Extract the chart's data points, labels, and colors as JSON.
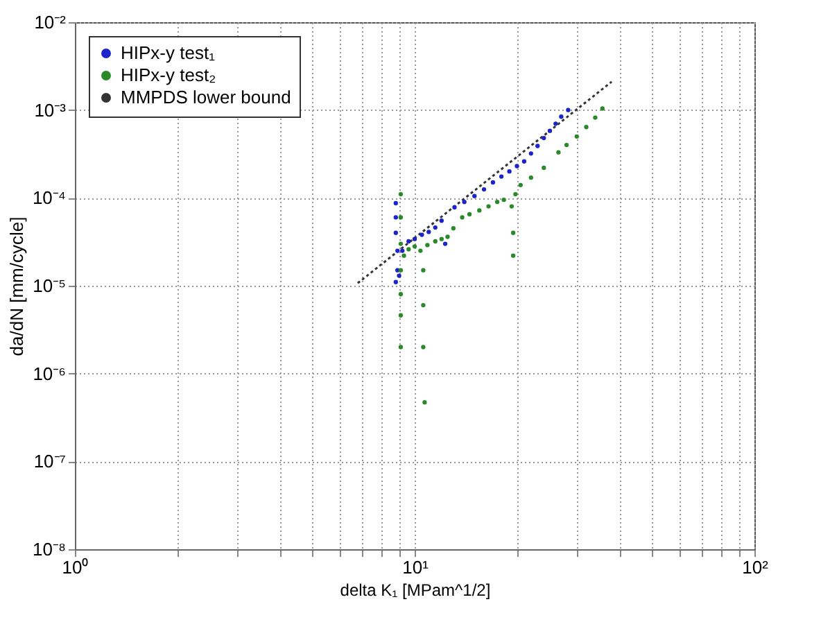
{
  "chart_data": {
    "type": "scatter",
    "xlabel": "delta K₁ [MPam^1/2]",
    "ylabel": "da/dN [mm/cycle]",
    "log": "xy",
    "grid": true,
    "legend": "top left",
    "marker": "circle",
    "xlim": [
      1,
      100
    ],
    "ylim": [
      1e-08,
      0.01
    ],
    "xticks": [
      {
        "value": 1,
        "label": "10⁰"
      },
      {
        "value": 2,
        "label": null
      },
      {
        "value": 3,
        "label": null
      },
      {
        "value": 4,
        "label": null
      },
      {
        "value": 5,
        "label": null
      },
      {
        "value": 6,
        "label": null
      },
      {
        "value": 7,
        "label": null
      },
      {
        "value": 8,
        "label": null
      },
      {
        "value": 9,
        "label": null
      },
      {
        "value": 10,
        "label": "10¹"
      },
      {
        "value": 20,
        "label": null
      },
      {
        "value": 30,
        "label": null
      },
      {
        "value": 40,
        "label": null
      },
      {
        "value": 50,
        "label": null
      },
      {
        "value": 60,
        "label": null
      },
      {
        "value": 70,
        "label": null
      },
      {
        "value": 80,
        "label": null
      },
      {
        "value": 90,
        "label": null
      },
      {
        "value": 100,
        "label": "10²"
      }
    ],
    "yticks": [
      {
        "value": 1e-08,
        "label": "10⁻⁸"
      },
      {
        "value": 1e-07,
        "label": "10⁻⁷"
      },
      {
        "value": 1e-06,
        "label": "10⁻⁶"
      },
      {
        "value": 1e-05,
        "label": "10⁻⁵"
      },
      {
        "value": 0.0001,
        "label": "10⁻⁴"
      },
      {
        "value": 0.001,
        "label": "10⁻³"
      },
      {
        "value": 0.01,
        "label": "10⁻²"
      }
    ],
    "series": [
      {
        "name": "HIPx-y test₁",
        "color": "#1c24c8",
        "x": [
          8.8,
          8.8,
          8.8,
          8.9,
          8.9,
          8.8,
          9.0,
          9.2,
          9.6,
          10,
          10.5,
          11,
          11.5,
          12,
          12.3,
          13.1,
          14,
          15,
          16,
          17,
          18,
          19,
          20,
          21,
          22,
          23,
          24,
          25,
          26,
          27,
          28.3
        ],
        "values": [
          8.7e-05,
          6e-05,
          4e-05,
          2.5e-05,
          1.5e-05,
          1.1e-05,
          1.3e-05,
          2.5e-05,
          3.2e-05,
          3.4e-05,
          3.8e-05,
          4.1e-05,
          4.6e-05,
          5.5e-05,
          3e-05,
          7.8e-05,
          9e-05,
          0.000105,
          0.000125,
          0.00015,
          0.000175,
          0.0002,
          0.00023,
          0.00026,
          0.00032,
          0.00039,
          0.00048,
          0.00058,
          0.0007,
          0.00084,
          0.001
        ]
      },
      {
        "name": "HIPx-y test₂",
        "color": "#2a8a2a",
        "x": [
          9.1,
          9.1,
          9.1,
          9.1,
          9.1,
          9.1,
          9.1,
          9.3,
          9.6,
          10,
          10.4,
          10.6,
          10.6,
          10.6,
          10.7,
          10.9,
          11.5,
          12,
          12.5,
          13,
          13.8,
          14.5,
          15.5,
          16.5,
          17.5,
          18.3,
          19.3,
          19.5,
          19.5,
          19.8,
          20.5,
          22,
          24,
          26.5,
          28,
          30,
          32,
          34,
          35.7
        ],
        "values": [
          0.00011,
          6e-05,
          3e-05,
          1.5e-05,
          8e-06,
          4.6e-06,
          2e-06,
          2.2e-05,
          2.6e-05,
          2.8e-05,
          2.5e-05,
          1.5e-05,
          6e-06,
          2e-06,
          4.7e-07,
          2.9e-05,
          3.2e-05,
          3.4e-05,
          3.6e-05,
          4.5e-05,
          6e-05,
          6.5e-05,
          7.2e-05,
          8e-05,
          9e-05,
          9.5e-05,
          8e-05,
          4e-05,
          2.2e-05,
          0.00011,
          0.00014,
          0.00017,
          0.00022,
          0.00033,
          0.0004,
          0.0005,
          0.00064,
          0.00082,
          0.00104
        ]
      },
      {
        "name": "MMPDS lower bound",
        "type": "line",
        "line_style": "dotted",
        "marker": "none",
        "color": "#333333",
        "x": [
          6.8,
          38
        ],
        "values": [
          1.07e-05,
          0.0021
        ]
      }
    ]
  }
}
